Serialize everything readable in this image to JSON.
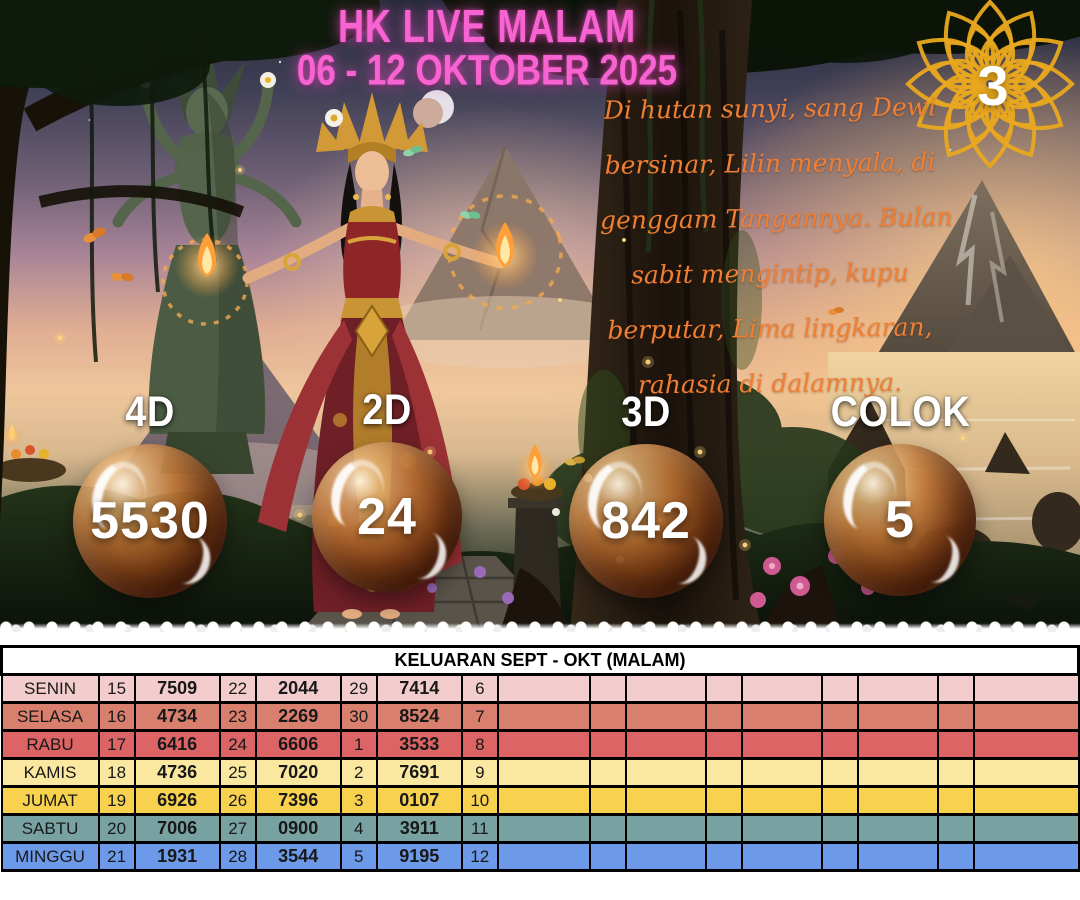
{
  "header": {
    "title_line1": "HK LIVE MALAM",
    "title_line2": "06 - 12 OKTOBER 2025"
  },
  "badge": {
    "value": "3"
  },
  "poem": {
    "lines": [
      "Di hutan sunyi, sang Dewi",
      "bersinar, Lilin menyala, di",
      "genggam Tangannya. Bulan",
      "sabit  mengintip, kupu",
      "berputar, Lima lingkaran,",
      "rahasia di dalamnya."
    ]
  },
  "predictions": [
    {
      "label": "4D",
      "value": "5530"
    },
    {
      "label": "2D",
      "value": "24"
    },
    {
      "label": "3D",
      "value": "842"
    },
    {
      "label": "COLOK",
      "value": "5"
    }
  ],
  "table": {
    "title": "KELUARAN SEPT - OKT (MALAM)",
    "rows": [
      {
        "day": "SENIN",
        "color": "#f3cdcd",
        "cells": [
          "15",
          "7509",
          "22",
          "2044",
          "29",
          "7414",
          "6",
          "",
          "",
          "",
          "",
          "",
          "",
          "",
          "",
          ""
        ]
      },
      {
        "day": "SELASA",
        "color": "#d97f6d",
        "cells": [
          "16",
          "4734",
          "23",
          "2269",
          "30",
          "8524",
          "7",
          "",
          "",
          "",
          "",
          "",
          "",
          "",
          "",
          ""
        ]
      },
      {
        "day": "RABU",
        "color": "#dd6464",
        "cells": [
          "17",
          "6416",
          "24",
          "6606",
          "1",
          "3533",
          "8",
          "",
          "",
          "",
          "",
          "",
          "",
          "",
          "",
          ""
        ]
      },
      {
        "day": "KAMIS",
        "color": "#fae8a0",
        "cells": [
          "18",
          "4736",
          "25",
          "7020",
          "2",
          "7691",
          "9",
          "",
          "",
          "",
          "",
          "",
          "",
          "",
          "",
          ""
        ]
      },
      {
        "day": "JUMAT",
        "color": "#f8d24f",
        "cells": [
          "19",
          "6926",
          "26",
          "7396",
          "3",
          "0107",
          "10",
          "",
          "",
          "",
          "",
          "",
          "",
          "",
          "",
          ""
        ]
      },
      {
        "day": "SABTU",
        "color": "#78a2a1",
        "cells": [
          "20",
          "7006",
          "27",
          "0900",
          "4",
          "3911",
          "11",
          "",
          "",
          "",
          "",
          "",
          "",
          "",
          "",
          ""
        ]
      },
      {
        "day": "MINGGU",
        "color": "#6c9ae8",
        "cells": [
          "21",
          "1931",
          "28",
          "3544",
          "5",
          "9195",
          "12",
          "",
          "",
          "",
          "",
          "",
          "",
          "",
          "",
          ""
        ]
      }
    ]
  },
  "colors": {
    "accent_pink": "#f863d2",
    "poem_orange": "#ee7f35",
    "mandala_gold": "#e9a81f"
  }
}
